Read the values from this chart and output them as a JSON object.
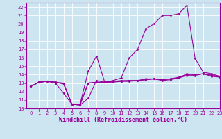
{
  "background_color": "#cce5f0",
  "grid_color": "#ffffff",
  "line_color": "#990099",
  "xlabel": "Windchill (Refroidissement éolien,°C)",
  "xlim": [
    -0.5,
    23
  ],
  "ylim": [
    10,
    22.5
  ],
  "yticks": [
    10,
    11,
    12,
    13,
    14,
    15,
    16,
    17,
    18,
    19,
    20,
    21,
    22
  ],
  "xticks": [
    0,
    1,
    2,
    3,
    4,
    5,
    6,
    7,
    8,
    9,
    10,
    11,
    12,
    13,
    14,
    15,
    16,
    17,
    18,
    19,
    20,
    21,
    22,
    23
  ],
  "series": [
    [
      12.6,
      13.1,
      13.2,
      13.1,
      12.9,
      10.5,
      10.4,
      13.0,
      13.1,
      13.1,
      13.1,
      13.2,
      13.2,
      13.3,
      13.4,
      13.5,
      13.3,
      13.4,
      13.6,
      13.9,
      14.0,
      14.1,
      13.8,
      13.7
    ],
    [
      12.6,
      13.1,
      13.2,
      13.0,
      11.8,
      10.5,
      10.5,
      14.4,
      16.2,
      13.1,
      13.3,
      13.6,
      16.0,
      17.0,
      19.4,
      20.0,
      21.0,
      21.0,
      21.2,
      22.2,
      15.9,
      14.3,
      14.1,
      13.8
    ],
    [
      12.6,
      13.1,
      13.2,
      13.1,
      12.9,
      10.5,
      10.4,
      11.2,
      13.3,
      13.1,
      13.2,
      13.3,
      13.3,
      13.3,
      13.5,
      13.5,
      13.4,
      13.5,
      13.6,
      14.1,
      14.0,
      14.1,
      14.0,
      13.7
    ],
    [
      12.6,
      13.1,
      13.2,
      13.1,
      13.0,
      10.5,
      10.5,
      13.0,
      13.1,
      13.1,
      13.2,
      13.2,
      13.3,
      13.3,
      13.4,
      13.5,
      13.4,
      13.5,
      13.7,
      14.0,
      13.9,
      14.1,
      13.9,
      13.7
    ]
  ],
  "title_fontsize": 6,
  "tick_fontsize": 5,
  "xlabel_fontsize": 6
}
